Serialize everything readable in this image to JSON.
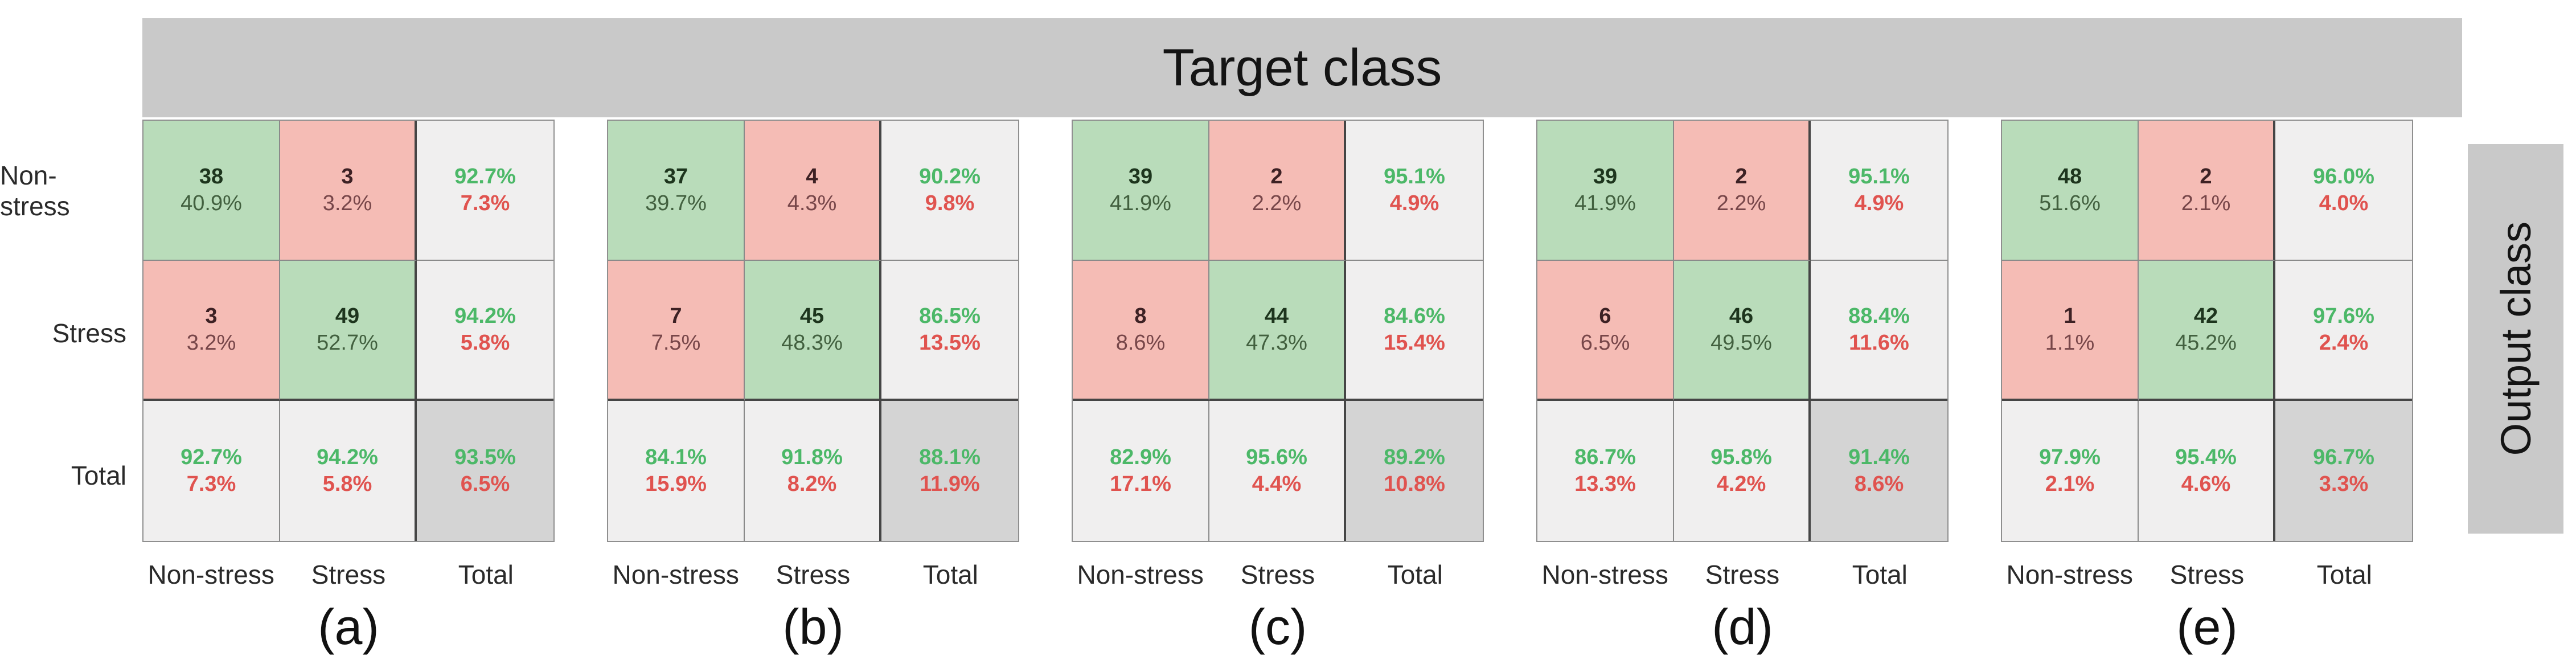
{
  "header": {
    "target_label": "Target class",
    "output_label": "Output class"
  },
  "row_labels": [
    "Non-stress",
    "Stress",
    "Total"
  ],
  "col_labels": [
    "Non-stress",
    "Stress",
    "Total"
  ],
  "colors": {
    "band_gray": "#c9c9c9",
    "green_cell": "#b9dcba",
    "red_cell": "#f5bcb5",
    "total_cell": "#f0efef",
    "grand_total_cell": "#d4d4d4",
    "accuracy_green_text": "#4cb868",
    "error_red_text": "#e0534f"
  },
  "matrices": [
    {
      "caption": "(a)",
      "cells": [
        [
          {
            "v": "38",
            "p": "40.9%",
            "t": "green"
          },
          {
            "v": "3",
            "p": "3.2%",
            "t": "red"
          },
          {
            "v": "92.7%",
            "p": "7.3%",
            "t": "total"
          }
        ],
        [
          {
            "v": "3",
            "p": "3.2%",
            "t": "red"
          },
          {
            "v": "49",
            "p": "52.7%",
            "t": "green"
          },
          {
            "v": "94.2%",
            "p": "5.8%",
            "t": "total"
          }
        ],
        [
          {
            "v": "92.7%",
            "p": "7.3%",
            "t": "total"
          },
          {
            "v": "94.2%",
            "p": "5.8%",
            "t": "total"
          },
          {
            "v": "93.5%",
            "p": "6.5%",
            "t": "grand"
          }
        ]
      ]
    },
    {
      "caption": "(b)",
      "cells": [
        [
          {
            "v": "37",
            "p": "39.7%",
            "t": "green"
          },
          {
            "v": "4",
            "p": "4.3%",
            "t": "red"
          },
          {
            "v": "90.2%",
            "p": "9.8%",
            "t": "total"
          }
        ],
        [
          {
            "v": "7",
            "p": "7.5%",
            "t": "red"
          },
          {
            "v": "45",
            "p": "48.3%",
            "t": "green"
          },
          {
            "v": "86.5%",
            "p": "13.5%",
            "t": "total"
          }
        ],
        [
          {
            "v": "84.1%",
            "p": "15.9%",
            "t": "total"
          },
          {
            "v": "91.8%",
            "p": "8.2%",
            "t": "total"
          },
          {
            "v": "88.1%",
            "p": "11.9%",
            "t": "grand"
          }
        ]
      ]
    },
    {
      "caption": "(c)",
      "cells": [
        [
          {
            "v": "39",
            "p": "41.9%",
            "t": "green"
          },
          {
            "v": "2",
            "p": "2.2%",
            "t": "red"
          },
          {
            "v": "95.1%",
            "p": "4.9%",
            "t": "total"
          }
        ],
        [
          {
            "v": "8",
            "p": "8.6%",
            "t": "red"
          },
          {
            "v": "44",
            "p": "47.3%",
            "t": "green"
          },
          {
            "v": "84.6%",
            "p": "15.4%",
            "t": "total"
          }
        ],
        [
          {
            "v": "82.9%",
            "p": "17.1%",
            "t": "total"
          },
          {
            "v": "95.6%",
            "p": "4.4%",
            "t": "total"
          },
          {
            "v": "89.2%",
            "p": "10.8%",
            "t": "grand"
          }
        ]
      ]
    },
    {
      "caption": "(d)",
      "cells": [
        [
          {
            "v": "39",
            "p": "41.9%",
            "t": "green"
          },
          {
            "v": "2",
            "p": "2.2%",
            "t": "red"
          },
          {
            "v": "95.1%",
            "p": "4.9%",
            "t": "total"
          }
        ],
        [
          {
            "v": "6",
            "p": "6.5%",
            "t": "red"
          },
          {
            "v": "46",
            "p": "49.5%",
            "t": "green"
          },
          {
            "v": "88.4%",
            "p": "11.6%",
            "t": "total"
          }
        ],
        [
          {
            "v": "86.7%",
            "p": "13.3%",
            "t": "total"
          },
          {
            "v": "95.8%",
            "p": "4.2%",
            "t": "total"
          },
          {
            "v": "91.4%",
            "p": "8.6%",
            "t": "grand"
          }
        ]
      ]
    },
    {
      "caption": "(e)",
      "cells": [
        [
          {
            "v": "48",
            "p": "51.6%",
            "t": "green"
          },
          {
            "v": "2",
            "p": "2.1%",
            "t": "red"
          },
          {
            "v": "96.0%",
            "p": "4.0%",
            "t": "total"
          }
        ],
        [
          {
            "v": "1",
            "p": "1.1%",
            "t": "red"
          },
          {
            "v": "42",
            "p": "45.2%",
            "t": "green"
          },
          {
            "v": "97.6%",
            "p": "2.4%",
            "t": "total"
          }
        ],
        [
          {
            "v": "97.9%",
            "p": "2.1%",
            "t": "total"
          },
          {
            "v": "95.4%",
            "p": "4.6%",
            "t": "total"
          },
          {
            "v": "96.7%",
            "p": "3.3%",
            "t": "grand"
          }
        ]
      ]
    }
  ],
  "chart_data": [
    {
      "type": "heatmap",
      "title": "(a)",
      "xlabel": "Target class",
      "ylabel": "Output class",
      "classes": [
        "Non-stress",
        "Stress"
      ],
      "counts": [
        [
          38,
          3
        ],
        [
          3,
          49
        ]
      ],
      "counts_pct": [
        [
          40.9,
          3.2
        ],
        [
          3.2,
          52.7
        ]
      ],
      "row_summary_pct": [
        [
          92.7,
          7.3
        ],
        [
          94.2,
          5.8
        ]
      ],
      "col_summary_pct": [
        [
          92.7,
          7.3
        ],
        [
          94.2,
          5.8
        ]
      ],
      "overall_pct": [
        93.5,
        6.5
      ]
    },
    {
      "type": "heatmap",
      "title": "(b)",
      "xlabel": "Target class",
      "ylabel": "Output class",
      "classes": [
        "Non-stress",
        "Stress"
      ],
      "counts": [
        [
          37,
          4
        ],
        [
          7,
          45
        ]
      ],
      "counts_pct": [
        [
          39.7,
          4.3
        ],
        [
          7.5,
          48.3
        ]
      ],
      "row_summary_pct": [
        [
          90.2,
          9.8
        ],
        [
          86.5,
          13.5
        ]
      ],
      "col_summary_pct": [
        [
          84.1,
          15.9
        ],
        [
          91.8,
          8.2
        ]
      ],
      "overall_pct": [
        88.1,
        11.9
      ]
    },
    {
      "type": "heatmap",
      "title": "(c)",
      "xlabel": "Target class",
      "ylabel": "Output class",
      "classes": [
        "Non-stress",
        "Stress"
      ],
      "counts": [
        [
          39,
          2
        ],
        [
          8,
          44
        ]
      ],
      "counts_pct": [
        [
          41.9,
          2.2
        ],
        [
          8.6,
          47.3
        ]
      ],
      "row_summary_pct": [
        [
          95.1,
          4.9
        ],
        [
          84.6,
          15.4
        ]
      ],
      "col_summary_pct": [
        [
          82.9,
          17.1
        ],
        [
          95.6,
          4.4
        ]
      ],
      "overall_pct": [
        89.2,
        10.8
      ]
    },
    {
      "type": "heatmap",
      "title": "(d)",
      "xlabel": "Target class",
      "ylabel": "Output class",
      "classes": [
        "Non-stress",
        "Stress"
      ],
      "counts": [
        [
          39,
          2
        ],
        [
          6,
          46
        ]
      ],
      "counts_pct": [
        [
          41.9,
          2.2
        ],
        [
          6.5,
          49.5
        ]
      ],
      "row_summary_pct": [
        [
          95.1,
          4.9
        ],
        [
          88.4,
          11.6
        ]
      ],
      "col_summary_pct": [
        [
          86.7,
          13.3
        ],
        [
          95.8,
          4.2
        ]
      ],
      "overall_pct": [
        91.4,
        8.6
      ]
    },
    {
      "type": "heatmap",
      "title": "(e)",
      "xlabel": "Target class",
      "ylabel": "Output class",
      "classes": [
        "Non-stress",
        "Stress"
      ],
      "counts": [
        [
          48,
          2
        ],
        [
          1,
          42
        ]
      ],
      "counts_pct": [
        [
          51.6,
          2.1
        ],
        [
          1.1,
          45.2
        ]
      ],
      "row_summary_pct": [
        [
          96.0,
          4.0
        ],
        [
          97.6,
          2.4
        ]
      ],
      "col_summary_pct": [
        [
          97.9,
          2.1
        ],
        [
          95.4,
          4.6
        ]
      ],
      "overall_pct": [
        96.7,
        3.3
      ]
    }
  ]
}
